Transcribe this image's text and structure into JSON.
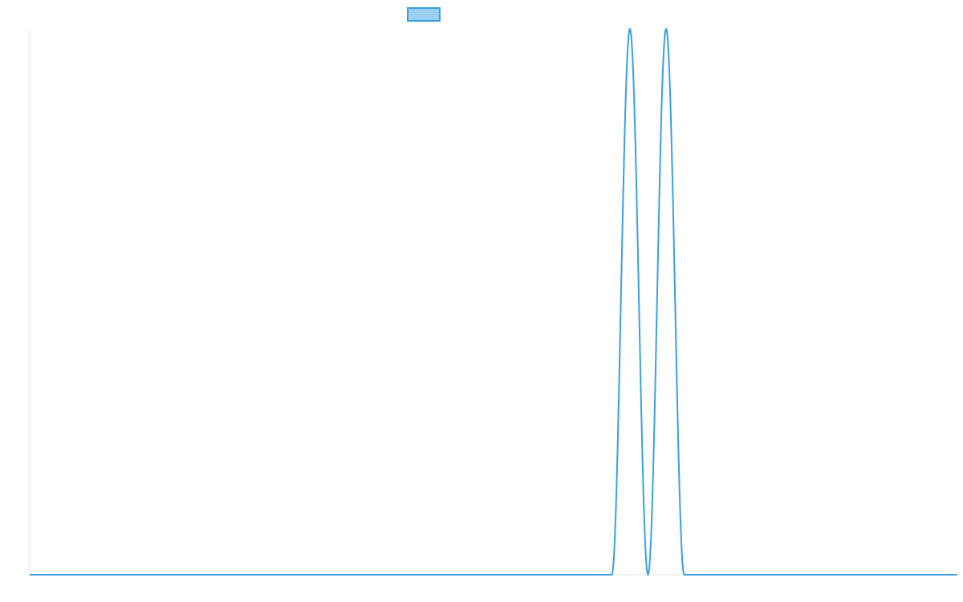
{
  "chart_data": {
    "type": "line",
    "title": "",
    "xlabel": "",
    "ylabel": "",
    "ylim": [
      0,
      1
    ],
    "grid": false,
    "legend": {
      "placement": "top-center",
      "entries": [
        {
          "name": "",
          "swatch_fill": "#99d0f3",
          "swatch_stroke": "#3b9fe0"
        }
      ]
    },
    "series": [
      {
        "name": "",
        "color": "#3b9fe0",
        "xlim": [
          0,
          1000
        ],
        "peaks": [
          {
            "center": 647,
            "halfwidth": 19.5,
            "height": 1
          },
          {
            "center": 686,
            "halfwidth": 19.5,
            "height": 1
          }
        ]
      }
    ]
  },
  "colors": {
    "axis": "#e6e6e6",
    "background": "#ffffff"
  }
}
